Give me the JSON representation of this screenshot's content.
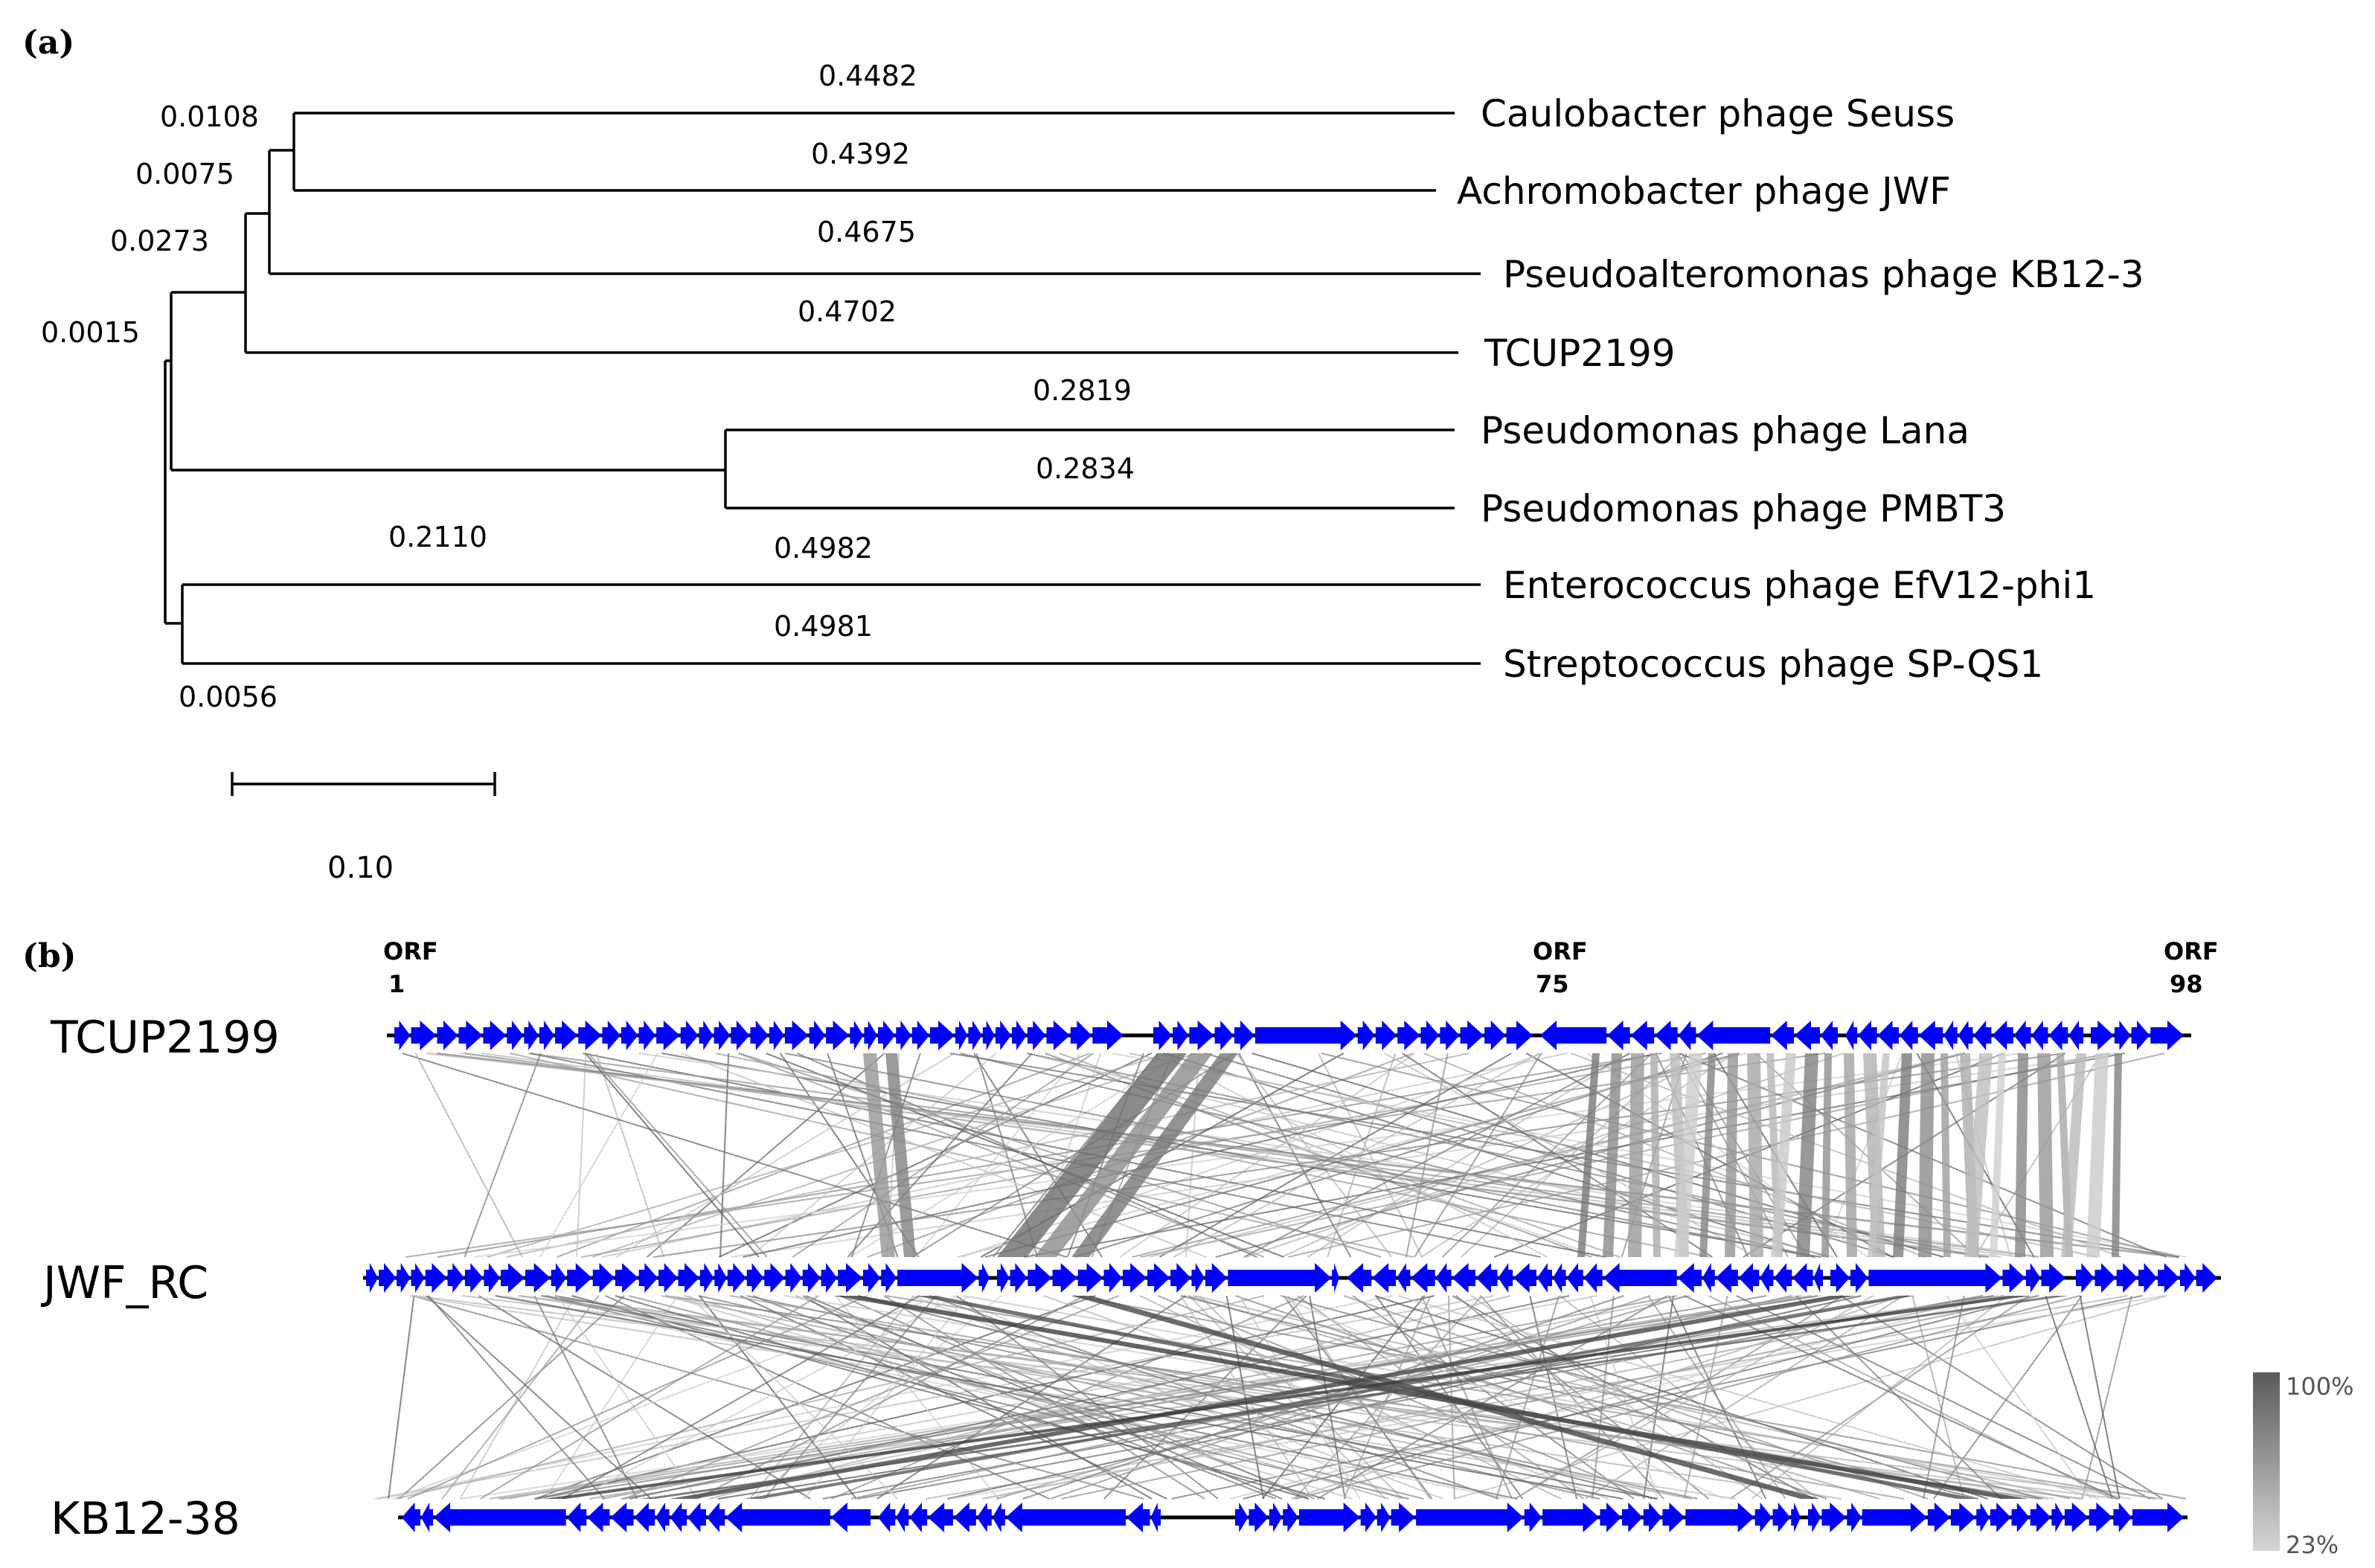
{
  "panels": {
    "a_label": "(a)",
    "b_label": "(b)"
  },
  "tree": {
    "taxa": [
      "Caulobacter phage Seuss",
      "Achromobacter phage JWF",
      "Pseudoalteromonas phage KB12-3",
      "TCUP2199",
      "Pseudomonas phage Lana",
      "Pseudomonas phage PMBT3",
      "Enterococcus phage EfV12-phi1",
      "Streptococcus phage SP-QS1"
    ],
    "terminal_lengths": [
      "0.4482",
      "0.4392",
      "0.4675",
      "0.4702",
      "0.2819",
      "0.2834",
      "0.4982",
      "0.4981"
    ],
    "internal_lengths": [
      "0.0108",
      "0.0075",
      "0.0273",
      "0.0015",
      "0.2110",
      "0.0056"
    ],
    "scale_bar": "0.10"
  },
  "synteny": {
    "genomes": [
      {
        "name": "TCUP2199",
        "orf_marks": [
          {
            "top": "ORF",
            "bottom": "1"
          },
          {
            "top": "ORF",
            "bottom": "75"
          },
          {
            "top": "ORF",
            "bottom": "98"
          }
        ]
      },
      {
        "name": "JWF_RC"
      },
      {
        "name": "KB12-38"
      }
    ],
    "legend": {
      "max": "100%",
      "min": "23%"
    },
    "gene_color": "#0000ff",
    "link_dark": "#3a3a3a",
    "link_light": "#bdbdbd"
  }
}
